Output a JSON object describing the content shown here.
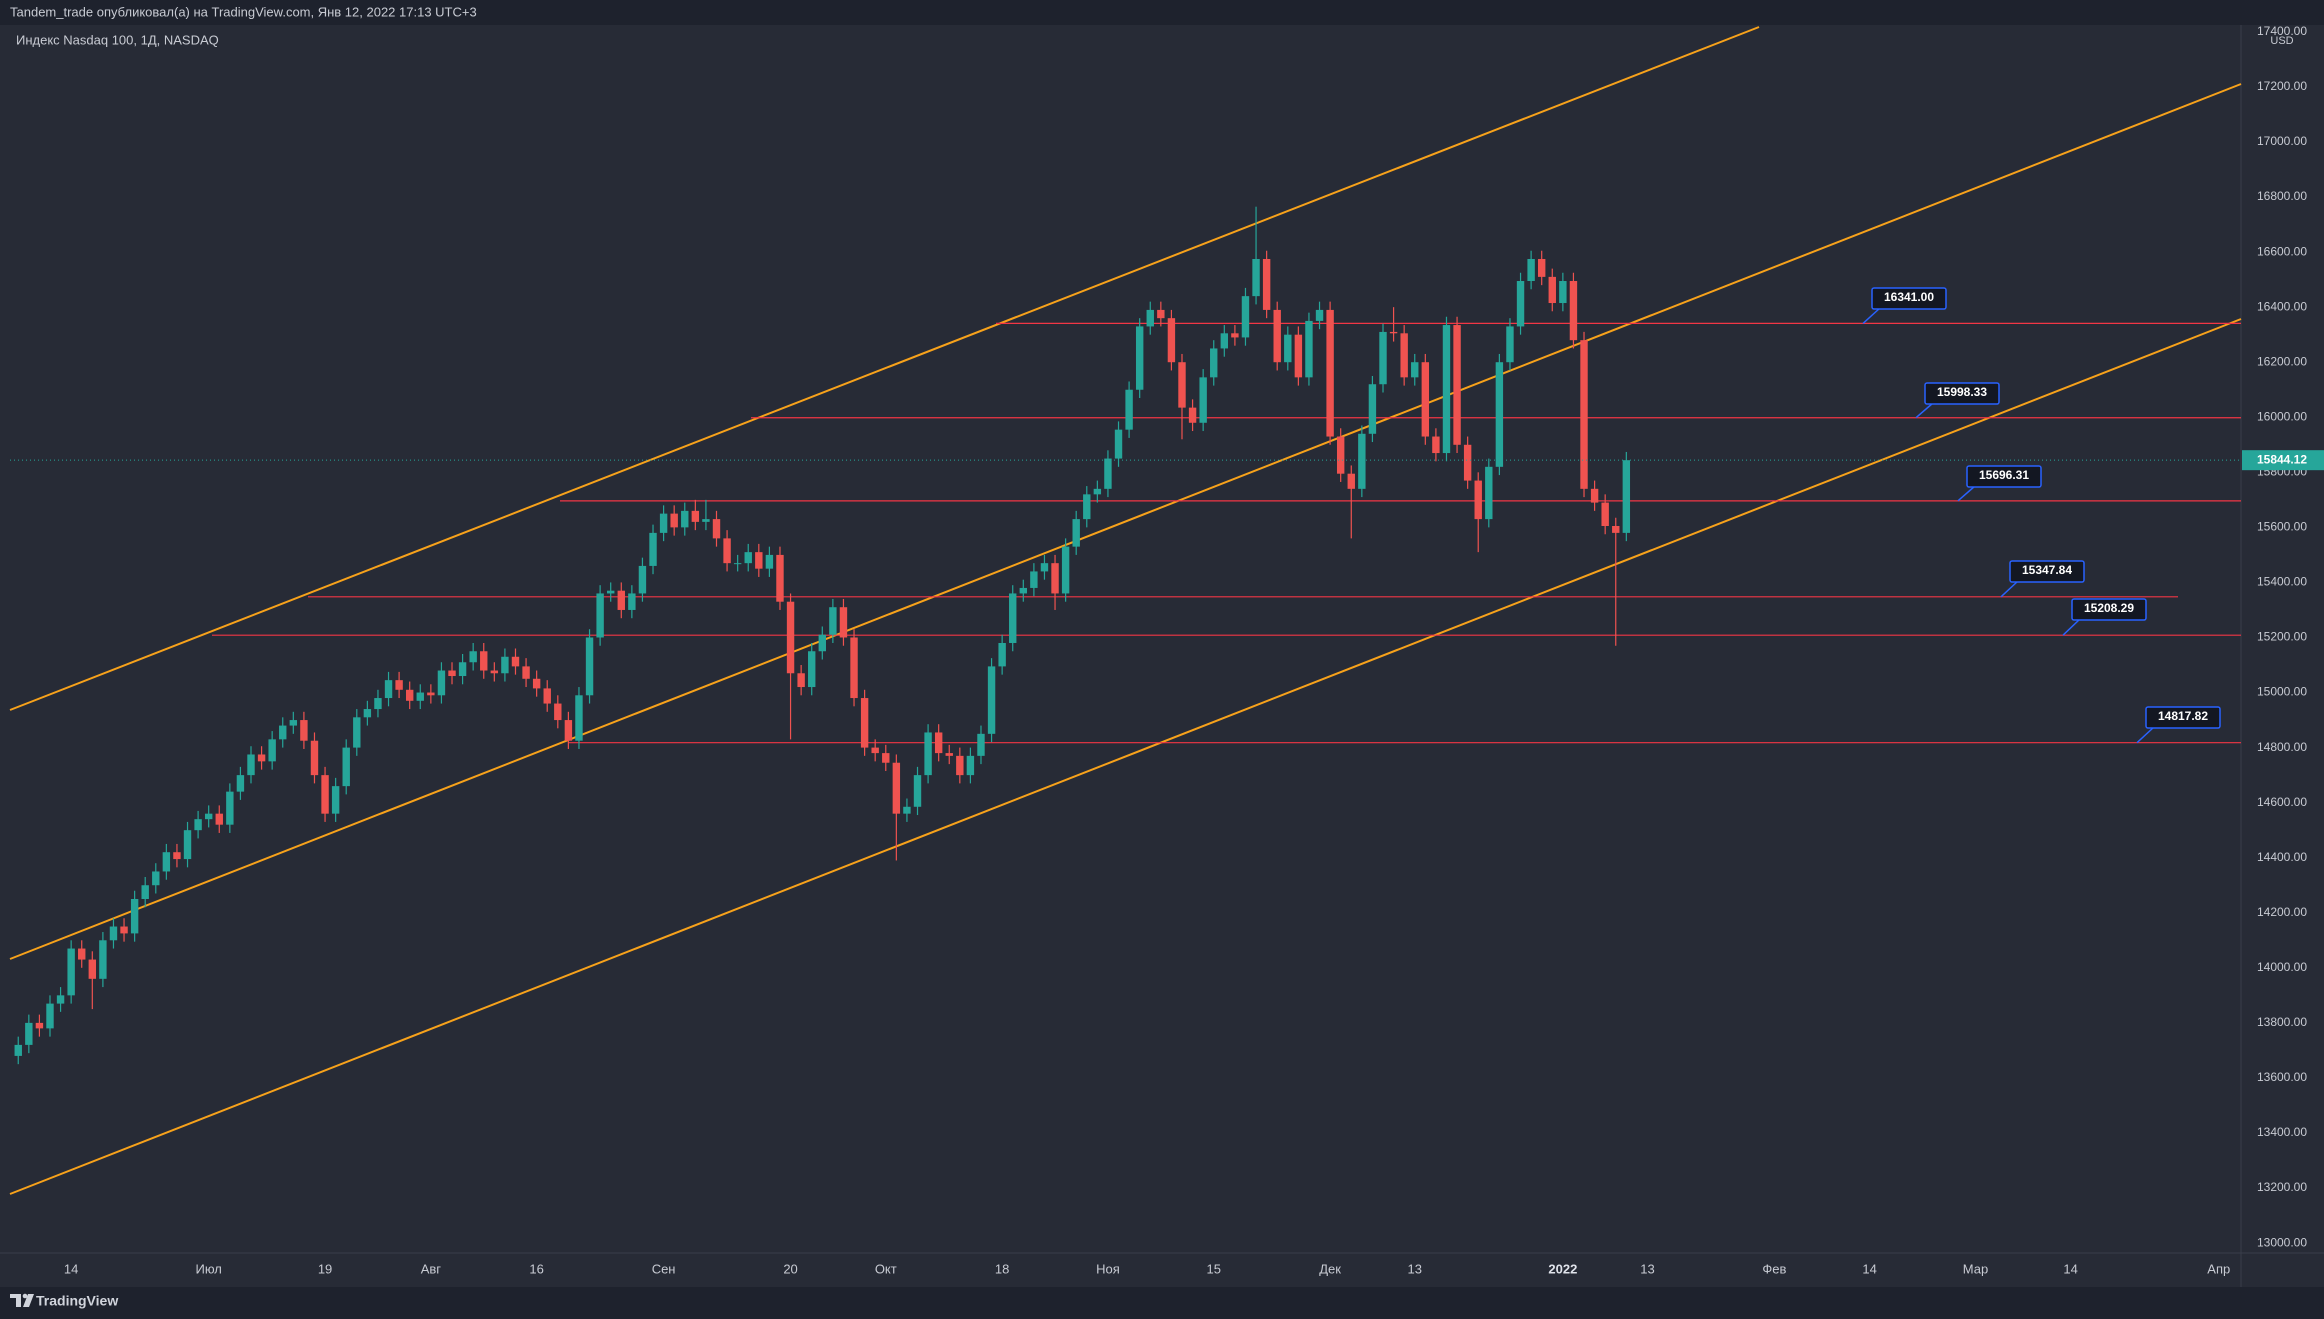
{
  "header": {
    "publisher": "Tandem_trade опубликовал(а) на TradingView.com, Янв 12, 2022 17:13 UTC+3",
    "symbol": "Индекс Nasdaq 100, 1Д, NASDAQ",
    "currency": "USD"
  },
  "footer": {
    "brand": "TradingView"
  },
  "chart_data": {
    "type": "candlestick",
    "up_color": "#26a69a",
    "down_color": "#ef5350",
    "open": [
      13680,
      13720,
      13800,
      13780,
      13870,
      13900,
      14070,
      14030,
      13960,
      14100,
      14150,
      14125,
      14250,
      14300,
      14350,
      14420,
      14395,
      14500,
      14540,
      14560,
      14520,
      14640,
      14700,
      14775,
      14750,
      14830,
      14880,
      14900,
      14825,
      14700,
      14560,
      14660,
      14800,
      14910,
      14940,
      14980,
      15045,
      15010,
      14970,
      15000,
      14990,
      15080,
      15060,
      15110,
      15150,
      15080,
      15070,
      15130,
      15095,
      15050,
      15015,
      14960,
      14900,
      14825,
      14990,
      15200,
      15360,
      15370,
      15300,
      15360,
      15460,
      15580,
      15650,
      15600,
      15660,
      15620,
      15630,
      15560,
      15470,
      15470,
      15510,
      15450,
      15500,
      15330,
      15070,
      15020,
      15150,
      15210,
      15310,
      15200,
      14980,
      14800,
      14780,
      14745,
      14560,
      14585,
      14700,
      14855,
      14780,
      14770,
      14700,
      14770,
      14850,
      15095,
      15180,
      15360,
      15380,
      15440,
      15470,
      15360,
      15530,
      15630,
      15720,
      15740,
      15850,
      15955,
      16100,
      16330,
      16390,
      16360,
      16200,
      16035,
      15980,
      16145,
      16250,
      16305,
      16290,
      16440,
      16575,
      16390,
      16200,
      16300,
      16145,
      16350,
      16390,
      15930,
      15795,
      15740,
      15940,
      16120,
      16310,
      16305,
      16145,
      16200,
      15930,
      15870,
      16335,
      15900,
      15770,
      15630,
      15820,
      16200,
      16330,
      16495,
      16575,
      16510,
      16415,
      16495,
      16280,
      15740,
      15690,
      15605,
      15580
    ],
    "high": [
      13750,
      13830,
      13830,
      13900,
      13930,
      14100,
      14100,
      14060,
      14130,
      14180,
      14180,
      14280,
      14330,
      14380,
      14450,
      14450,
      14530,
      14570,
      14590,
      14590,
      14670,
      14730,
      14805,
      14805,
      14860,
      14910,
      14930,
      14930,
      14855,
      14730,
      14690,
      14830,
      14940,
      14970,
      15010,
      15075,
      15075,
      15040,
      15030,
      15030,
      15110,
      15110,
      15140,
      15180,
      15180,
      15110,
      15160,
      15160,
      15125,
      15080,
      15045,
      14990,
      14930,
      15020,
      15230,
      15390,
      15400,
      15400,
      15390,
      15490,
      15610,
      15680,
      15680,
      15690,
      15700,
      15700,
      15660,
      15590,
      15500,
      15540,
      15540,
      15530,
      15530,
      15360,
      15100,
      15180,
      15240,
      15340,
      15340,
      15230,
      15010,
      14830,
      14810,
      14775,
      14615,
      14730,
      14885,
      14885,
      14810,
      14800,
      14800,
      14880,
      15125,
      15210,
      15390,
      15410,
      15470,
      15500,
      15500,
      15560,
      15660,
      15750,
      15770,
      15880,
      15985,
      16130,
      16360,
      16420,
      16420,
      16390,
      16230,
      16065,
      16175,
      16280,
      16335,
      16335,
      16470,
      16765,
      16605,
      16420,
      16330,
      16330,
      16380,
      16420,
      16420,
      15960,
      15825,
      15970,
      16150,
      16340,
      16400,
      16335,
      16230,
      16230,
      15960,
      16365,
      16365,
      15930,
      15800,
      15850,
      16230,
      16360,
      16525,
      16605,
      16605,
      16540,
      16525,
      16525,
      16310,
      15770,
      15720,
      15635,
      15874
    ],
    "low": [
      13650,
      13690,
      13750,
      13750,
      13840,
      13870,
      14000,
      13850,
      13930,
      14070,
      14095,
      14095,
      14220,
      14270,
      14320,
      14365,
      14365,
      14470,
      14510,
      14490,
      14490,
      14610,
      14670,
      14720,
      14720,
      14800,
      14850,
      14795,
      14670,
      14530,
      14530,
      14630,
      14770,
      14880,
      14910,
      14950,
      14980,
      14940,
      14940,
      14960,
      14960,
      15030,
      15030,
      15080,
      15050,
      15040,
      15040,
      15065,
      15020,
      14985,
      14930,
      14870,
      14795,
      14795,
      14960,
      15170,
      15330,
      15270,
      15270,
      15330,
      15430,
      15550,
      15570,
      15570,
      15590,
      15590,
      15530,
      15440,
      15440,
      15440,
      15420,
      15420,
      15300,
      14830,
      14990,
      14990,
      15120,
      15180,
      15170,
      14950,
      14770,
      14750,
      14715,
      14390,
      14530,
      14555,
      14670,
      14750,
      14740,
      14670,
      14670,
      14740,
      14820,
      15065,
      15150,
      15330,
      15350,
      15410,
      15300,
      15330,
      15500,
      15600,
      15690,
      15710,
      15820,
      15925,
      16070,
      16300,
      16330,
      16170,
      15920,
      15950,
      15950,
      16115,
      16220,
      16260,
      16260,
      16410,
      16360,
      16170,
      16170,
      16115,
      16115,
      16320,
      15900,
      15765,
      15560,
      15710,
      15910,
      16090,
      16275,
      16115,
      16115,
      15900,
      15840,
      15840,
      15870,
      15740,
      15510,
      15600,
      15790,
      16170,
      16300,
      16465,
      16480,
      16385,
      16385,
      16250,
      15710,
      15660,
      15575,
      15170,
      15550
    ],
    "close": [
      13720,
      13800,
      13780,
      13870,
      13900,
      14070,
      14030,
      13960,
      14100,
      14150,
      14125,
      14250,
      14300,
      14350,
      14420,
      14395,
      14500,
      14540,
      14560,
      14520,
      14640,
      14700,
      14775,
      14750,
      14830,
      14880,
      14900,
      14825,
      14700,
      14560,
      14660,
      14800,
      14910,
      14940,
      14980,
      15045,
      15010,
      14970,
      15000,
      14990,
      15080,
      15060,
      15110,
      15150,
      15080,
      15070,
      15130,
      15095,
      15050,
      15015,
      14960,
      14900,
      14825,
      14990,
      15200,
      15360,
      15370,
      15300,
      15360,
      15460,
      15580,
      15650,
      15600,
      15660,
      15620,
      15630,
      15560,
      15470,
      15470,
      15510,
      15450,
      15500,
      15330,
      15070,
      15020,
      15150,
      15210,
      15310,
      15200,
      14980,
      14800,
      14780,
      14745,
      14560,
      14585,
      14700,
      14855,
      14780,
      14770,
      14700,
      14770,
      14850,
      15095,
      15180,
      15360,
      15380,
      15440,
      15470,
      15360,
      15530,
      15630,
      15720,
      15740,
      15850,
      15955,
      16100,
      16330,
      16390,
      16360,
      16200,
      16035,
      15980,
      16145,
      16250,
      16305,
      16290,
      16440,
      16575,
      16390,
      16200,
      16300,
      16145,
      16350,
      16390,
      15930,
      15795,
      15740,
      15940,
      16120,
      16310,
      16305,
      16145,
      16200,
      15930,
      15870,
      16335,
      15900,
      15770,
      15630,
      15820,
      16200,
      16330,
      16495,
      16575,
      16510,
      16415,
      16495,
      16280,
      15740,
      15690,
      15605,
      15580,
      15844.12
    ],
    "levels": {
      "values": [
        16341,
        15998.33,
        15696.31,
        15347.84,
        15208.29,
        14817.82
      ],
      "value_labels": [
        "16341.00",
        "15998.33",
        "15696.31",
        "15347.84",
        "15208.29",
        "14817.82"
      ],
      "color": "#f23645"
    },
    "xlim": [
      -0.78,
      210.1
    ],
    "xticks": [
      {
        "value": 5,
        "label": "14"
      },
      {
        "value": 18,
        "label": "Июл"
      },
      {
        "value": 29,
        "label": "19"
      },
      {
        "value": 39,
        "label": "Авг"
      },
      {
        "value": 49,
        "label": "16"
      },
      {
        "value": 61,
        "label": "Сен"
      },
      {
        "value": 73,
        "label": "20"
      },
      {
        "value": 82,
        "label": "Окт"
      },
      {
        "value": 93,
        "label": "18"
      },
      {
        "value": 103,
        "label": "Ноя"
      },
      {
        "value": 113,
        "label": "15"
      },
      {
        "value": 124,
        "label": "Дек"
      },
      {
        "value": 132,
        "label": "13"
      },
      {
        "value": 146,
        "label": "2022"
      },
      {
        "value": 154,
        "label": "13"
      },
      {
        "value": 166,
        "label": "Фев"
      },
      {
        "value": 175,
        "label": "14"
      },
      {
        "value": 185,
        "label": "Мар"
      },
      {
        "value": 194,
        "label": "14"
      },
      {
        "value": 208,
        "label": "Апр"
      }
    ],
    "ylim": [
      12964,
      17425
    ],
    "yticks": [
      {
        "value": 13000,
        "label": "13000.00"
      },
      {
        "value": 13200,
        "label": "13200.00"
      },
      {
        "value": 13400,
        "label": "13400.00"
      },
      {
        "value": 13600,
        "label": "13600.00"
      },
      {
        "value": 13800,
        "label": "13800.00"
      },
      {
        "value": 14000,
        "label": "14000.00"
      },
      {
        "value": 14200,
        "label": "14200.00"
      },
      {
        "value": 14400,
        "label": "14400.00"
      },
      {
        "value": 14600,
        "label": "14600.00"
      },
      {
        "value": 14800,
        "label": "14800.00"
      },
      {
        "value": 15000,
        "label": "15000.00"
      },
      {
        "value": 15200,
        "label": "15200.00"
      },
      {
        "value": 15400,
        "label": "15400.00"
      },
      {
        "value": 15600,
        "label": "15600.00"
      },
      {
        "value": 15800,
        "label": "15800.00"
      },
      {
        "value": 16000,
        "label": "16000.00"
      },
      {
        "value": 16200,
        "label": "16200.00"
      },
      {
        "value": 16400,
        "label": "16400.00"
      },
      {
        "value": 16600,
        "label": "16600.00"
      },
      {
        "value": 16800,
        "label": "16800.00"
      },
      {
        "value": 17000,
        "label": "17000.00"
      },
      {
        "value": 17200,
        "label": "17200.00"
      },
      {
        "value": 17400,
        "label": "17400.00"
      }
    ]
  }
}
